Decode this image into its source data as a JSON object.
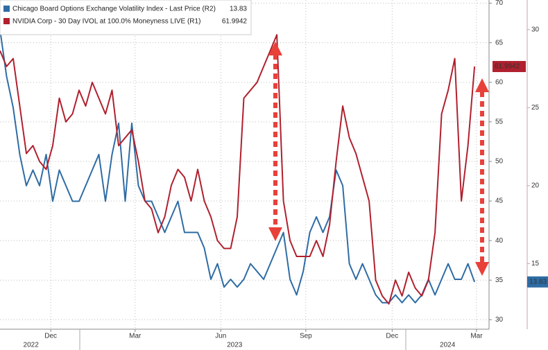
{
  "chart_data": {
    "type": "line",
    "x": [
      0,
      1,
      2,
      3,
      4,
      5,
      6,
      7,
      8,
      9,
      10,
      11,
      12,
      13,
      14,
      15,
      16,
      17,
      18,
      19,
      20,
      21,
      22,
      23,
      24,
      25,
      26,
      27,
      28,
      29,
      30,
      31,
      32,
      33,
      34,
      35,
      36,
      37,
      38,
      39,
      40,
      41,
      42,
      43,
      44,
      45,
      46,
      47,
      48,
      49,
      50,
      51,
      52,
      53,
      54,
      55,
      56,
      57,
      58,
      59,
      60,
      61,
      62,
      63,
      64,
      65,
      66,
      67,
      68,
      69,
      70,
      71,
      72
    ],
    "xlim": [
      0,
      74.2
    ],
    "xticks": [
      {
        "value": 7.7,
        "label": "Dec"
      },
      {
        "value": 20.5,
        "label": "Mar"
      },
      {
        "value": 33.5,
        "label": "Jun"
      },
      {
        "value": 46.4,
        "label": "Sep"
      },
      {
        "value": 59.5,
        "label": "Dec"
      },
      {
        "value": 72.3,
        "label": "Mar"
      }
    ],
    "year_ticks": [
      {
        "value": 4.7,
        "label": "2022"
      },
      {
        "value": 35.6,
        "label": "2023"
      },
      {
        "value": 67.9,
        "label": "2024"
      }
    ],
    "ylim": [
      28.8,
      70.4
    ],
    "yticks": [
      30,
      35,
      40,
      45,
      50,
      55,
      60,
      65,
      70
    ],
    "y2lim": [
      10.8,
      31.9
    ],
    "y2ticks": [
      15,
      20,
      25,
      30
    ],
    "grid": true,
    "series": [
      {
        "name": "Chicago Board Options Exchange Volatility Index - Last Price (R2)",
        "color": "#2e6ca4",
        "axis": "y2",
        "values": [
          30,
          27,
          25,
          22,
          20,
          21,
          20,
          22,
          19,
          21,
          20,
          19,
          19,
          20,
          21,
          22,
          19,
          22,
          24,
          19,
          24,
          20,
          19,
          19,
          18,
          17,
          18,
          19,
          17,
          17,
          17,
          16,
          14,
          15,
          13.5,
          14,
          13.5,
          14,
          15,
          14.5,
          14,
          15,
          16,
          17,
          14,
          13,
          14.5,
          17,
          18,
          17,
          18,
          21,
          20,
          15,
          14,
          15,
          14,
          13,
          12.5,
          12.5,
          13,
          12.5,
          13,
          12.5,
          13,
          14,
          13,
          14,
          15,
          14,
          14,
          15,
          13.83
        ]
      },
      {
        "name": "NVIDIA Corp - 30 Day IVOL at 100.0% Moneyness LIVE (R1)",
        "color": "#b0202e",
        "axis": "y",
        "values": [
          64,
          62,
          63,
          57,
          51,
          52,
          50,
          49,
          52,
          58,
          55,
          56,
          59,
          57,
          60,
          58,
          56,
          59,
          52,
          53,
          54,
          50,
          45,
          44,
          41,
          43,
          47,
          49,
          48,
          45,
          49,
          45,
          43,
          40,
          39,
          39,
          43,
          58,
          59,
          60,
          62,
          64,
          66,
          45,
          40,
          38,
          38,
          38,
          40,
          38,
          42,
          50,
          57,
          53,
          51,
          48,
          45,
          35,
          33,
          32,
          35,
          33,
          36,
          34,
          33,
          35,
          41,
          56,
          59,
          63,
          45,
          52,
          61.9942
        ]
      }
    ]
  }
}
